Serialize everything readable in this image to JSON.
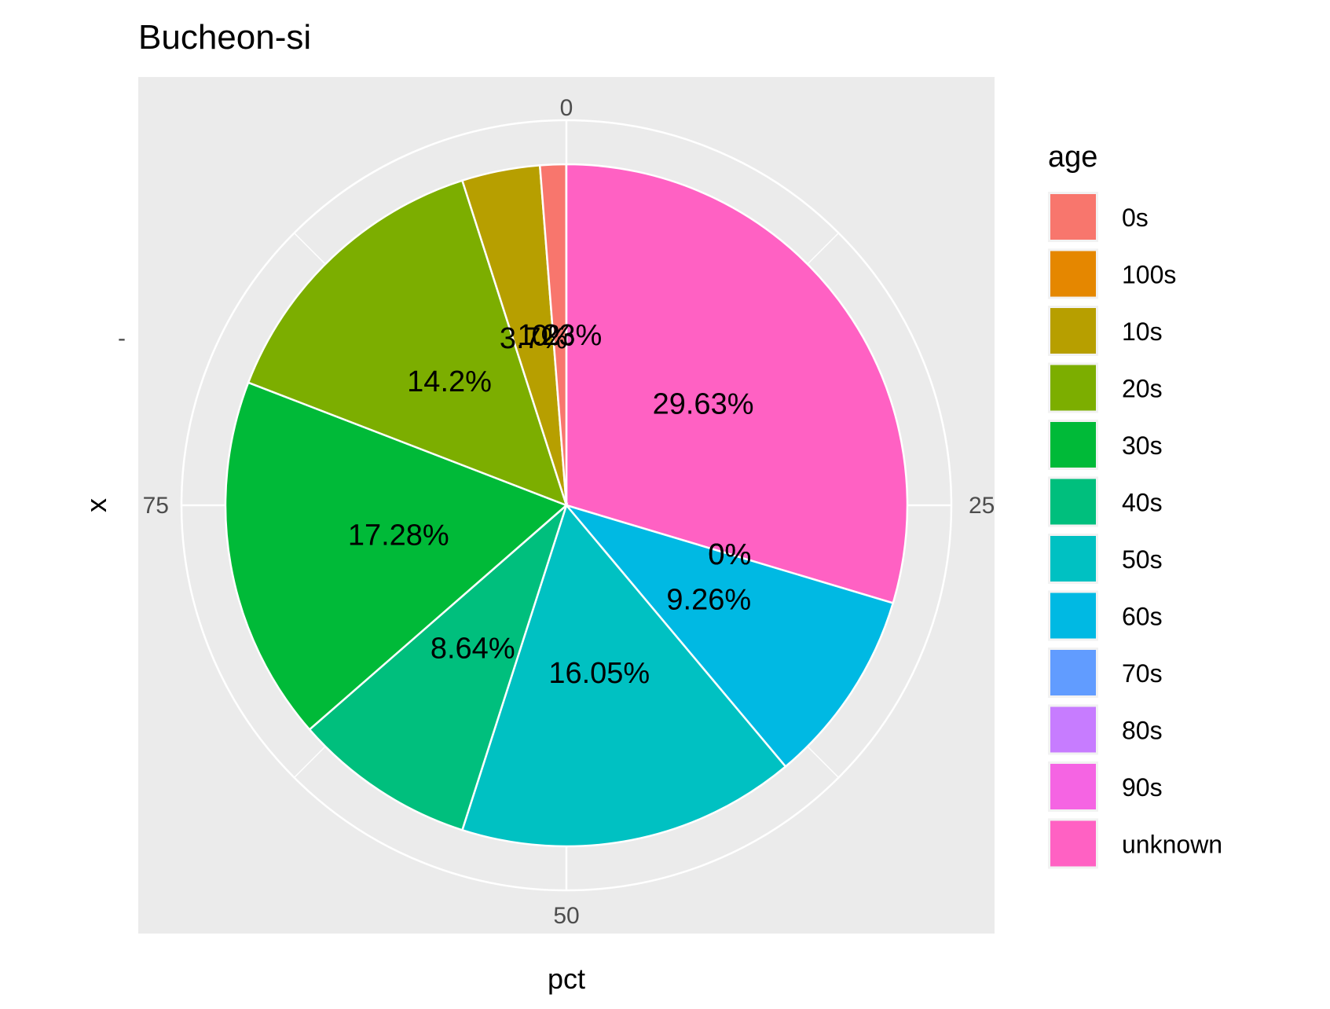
{
  "chart_data": {
    "type": "pie",
    "title": "Bucheon-si",
    "xlabel": "pct",
    "ylabel": "x",
    "y_tick_labels": [
      "-"
    ],
    "angular_ticks": [
      {
        "value": 0,
        "label": "0"
      },
      {
        "value": 25,
        "label": "25"
      },
      {
        "value": 50,
        "label": "50"
      },
      {
        "value": 75,
        "label": "75"
      }
    ],
    "range": [
      0,
      100
    ],
    "legend": {
      "title": "age",
      "position": "right"
    },
    "slices": [
      {
        "name": "unknown",
        "value": 29.63,
        "label": "29.63%",
        "color": "#FF61C3"
      },
      {
        "name": "90s",
        "value": 0,
        "label": "0%",
        "color": "#F564E3"
      },
      {
        "name": "80s",
        "value": 0,
        "label": "0%",
        "color": "#C77CFF"
      },
      {
        "name": "70s",
        "value": 0,
        "label": "0%",
        "color": "#619CFF"
      },
      {
        "name": "60s",
        "value": 9.26,
        "label": "9.26%",
        "color": "#00B9E3"
      },
      {
        "name": "50s",
        "value": 16.05,
        "label": "16.05%",
        "color": "#00C1C2"
      },
      {
        "name": "40s",
        "value": 8.64,
        "label": "8.64%",
        "color": "#00BF7D"
      },
      {
        "name": "30s",
        "value": 17.28,
        "label": "17.28%",
        "color": "#00BA38"
      },
      {
        "name": "20s",
        "value": 14.2,
        "label": "14.2%",
        "color": "#7CAE00"
      },
      {
        "name": "10s",
        "value": 3.7,
        "label": "3.7%",
        "color": "#B79F00"
      },
      {
        "name": "100s",
        "value": 0,
        "label": "0%",
        "color": "#E58700"
      },
      {
        "name": "0s",
        "value": 1.23,
        "label": "1.23%",
        "color": "#F8766D"
      }
    ],
    "legend_order": [
      "0s",
      "100s",
      "10s",
      "20s",
      "30s",
      "40s",
      "50s",
      "60s",
      "70s",
      "80s",
      "90s",
      "unknown"
    ]
  }
}
